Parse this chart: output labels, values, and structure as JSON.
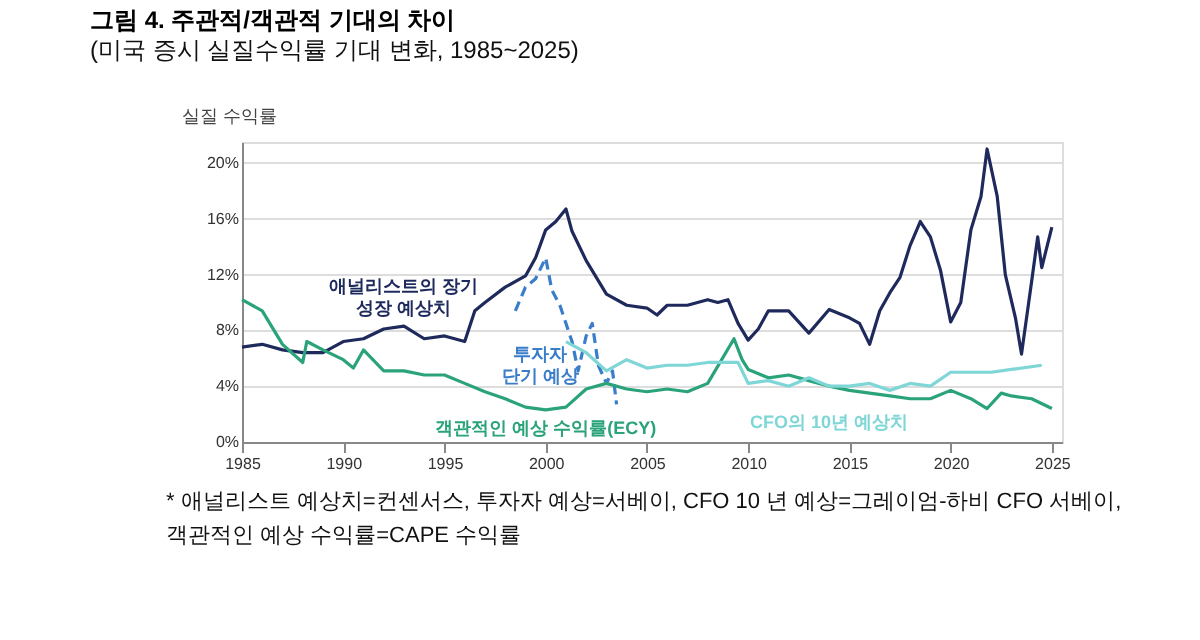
{
  "chart_data": {
    "type": "line",
    "title": "그림 4. 주관적/객관적 기대의 차이",
    "subtitle": "(미국 증시 실질수익률 기대 변화, 1985~2025)",
    "ylabel": "실질 수익률",
    "xlim": [
      1985,
      2025.5
    ],
    "xticks": [
      1985,
      1990,
      1995,
      2000,
      2005,
      2010,
      2015,
      2020,
      2025
    ],
    "ylim": [
      0,
      21.5
    ],
    "yticks": [
      {
        "value": 0,
        "label": "0%"
      },
      {
        "value": 4,
        "label": "4%"
      },
      {
        "value": 8,
        "label": "8%"
      },
      {
        "value": 12,
        "label": "12%"
      },
      {
        "value": 16,
        "label": "16%"
      },
      {
        "value": 20,
        "label": "20%"
      }
    ],
    "grid": "y",
    "line_style": "solid",
    "series": [
      {
        "name": "애널리스트의 장기\n성장 예상치",
        "color": "#1f2a5c",
        "x": [
          1985,
          1986,
          1987,
          1988,
          1989,
          1990,
          1991,
          1992,
          1993,
          1994,
          1995,
          1996,
          1996.5,
          1997,
          1998,
          1999,
          1999.5,
          2000,
          2000.5,
          2001,
          2001.3,
          2002,
          2003,
          2004,
          2005,
          2005.5,
          2006,
          2007,
          2008,
          2008.5,
          2009,
          2009.5,
          2010,
          2010.5,
          2011,
          2012,
          2013,
          2014,
          2015,
          2015.5,
          2016,
          2016.5,
          2017,
          2017.5,
          2018,
          2018.5,
          2019,
          2019.5,
          2020,
          2020.5,
          2021,
          2021.5,
          2021.8,
          2022.3,
          2022.7,
          2023.2,
          2023.5,
          2024,
          2024.3,
          2024.5,
          2025
        ],
        "values": [
          6.8,
          7.0,
          6.6,
          6.4,
          6.4,
          7.2,
          7.4,
          8.1,
          8.3,
          7.4,
          7.6,
          7.2,
          9.4,
          10.0,
          11.1,
          11.9,
          13.2,
          15.2,
          15.8,
          16.7,
          15.1,
          13.0,
          10.6,
          9.8,
          9.6,
          9.1,
          9.8,
          9.8,
          10.2,
          10.0,
          10.2,
          8.5,
          7.3,
          8.1,
          9.4,
          9.4,
          7.8,
          9.5,
          8.9,
          8.5,
          7.0,
          9.4,
          10.7,
          11.8,
          14.1,
          15.8,
          14.7,
          12.3,
          8.6,
          10.0,
          15.2,
          17.6,
          21.0,
          17.6,
          12.0,
          8.9,
          6.3,
          11.5,
          14.7,
          12.5,
          15.4
        ]
      },
      {
        "name": "투자자\n단기 예상",
        "color": "#3a7dc9",
        "line_style": "dashed",
        "x": [
          1998.5,
          1999,
          1999.5,
          2000,
          2000.3,
          2000.7,
          2001.3,
          2001.6,
          2002,
          2002.3,
          2002.6,
          2003,
          2003.3,
          2003.5
        ],
        "values": [
          9.4,
          11.1,
          11.7,
          13.2,
          10.9,
          9.8,
          7.2,
          5.1,
          7.6,
          8.5,
          5.5,
          4.2,
          5.1,
          2.7
        ]
      },
      {
        "name": "객관적인 예상 수익률(ECY)",
        "color": "#2aa37a",
        "x": [
          1985,
          1986,
          1987,
          1988,
          1988.2,
          1989,
          1990,
          1990.5,
          1991,
          1992,
          1993,
          1994,
          1995,
          1996,
          1997,
          1998,
          1999,
          2000,
          2001,
          2002,
          2003,
          2004,
          2005,
          2006,
          2007,
          2008,
          2009.3,
          2009.7,
          2010,
          2011,
          2012,
          2013,
          2014,
          2015,
          2016,
          2017,
          2018,
          2019,
          2020,
          2021,
          2021.8,
          2022.5,
          2023,
          2024,
          2025
        ],
        "values": [
          10.2,
          9.4,
          7.0,
          5.7,
          7.2,
          6.6,
          5.9,
          5.3,
          6.6,
          5.1,
          5.1,
          4.8,
          4.8,
          4.2,
          3.6,
          3.1,
          2.5,
          2.3,
          2.5,
          3.8,
          4.2,
          3.8,
          3.6,
          3.8,
          3.6,
          4.2,
          7.4,
          5.9,
          5.2,
          4.6,
          4.8,
          4.4,
          4.0,
          3.7,
          3.5,
          3.3,
          3.1,
          3.1,
          3.7,
          3.1,
          2.4,
          3.5,
          3.3,
          3.1,
          2.4
        ]
      },
      {
        "name": "CFO의 10년 예상치",
        "color": "#7fd6d6",
        "x": [
          2001,
          2002,
          2003,
          2004,
          2005,
          2006,
          2007,
          2008,
          2009,
          2009.5,
          2010,
          2011,
          2012,
          2013,
          2014,
          2015,
          2016,
          2017,
          2018,
          2019,
          2020,
          2021,
          2022,
          2023,
          2024.5
        ],
        "values": [
          7.2,
          6.4,
          5.1,
          5.9,
          5.3,
          5.5,
          5.5,
          5.7,
          5.7,
          5.7,
          4.2,
          4.4,
          4.0,
          4.6,
          4.0,
          4.0,
          4.2,
          3.7,
          4.2,
          4.0,
          5.0,
          5.0,
          5.0,
          5.2,
          5.5
        ]
      }
    ],
    "annotations": [
      "* 애널리스트 예상치=컨센서스, 투자자 예상=서베이, CFO 10 년 예상=그레이엄-하비 CFO 서베이,\n객관적인 예상 수익률=CAPE 수익률"
    ]
  }
}
